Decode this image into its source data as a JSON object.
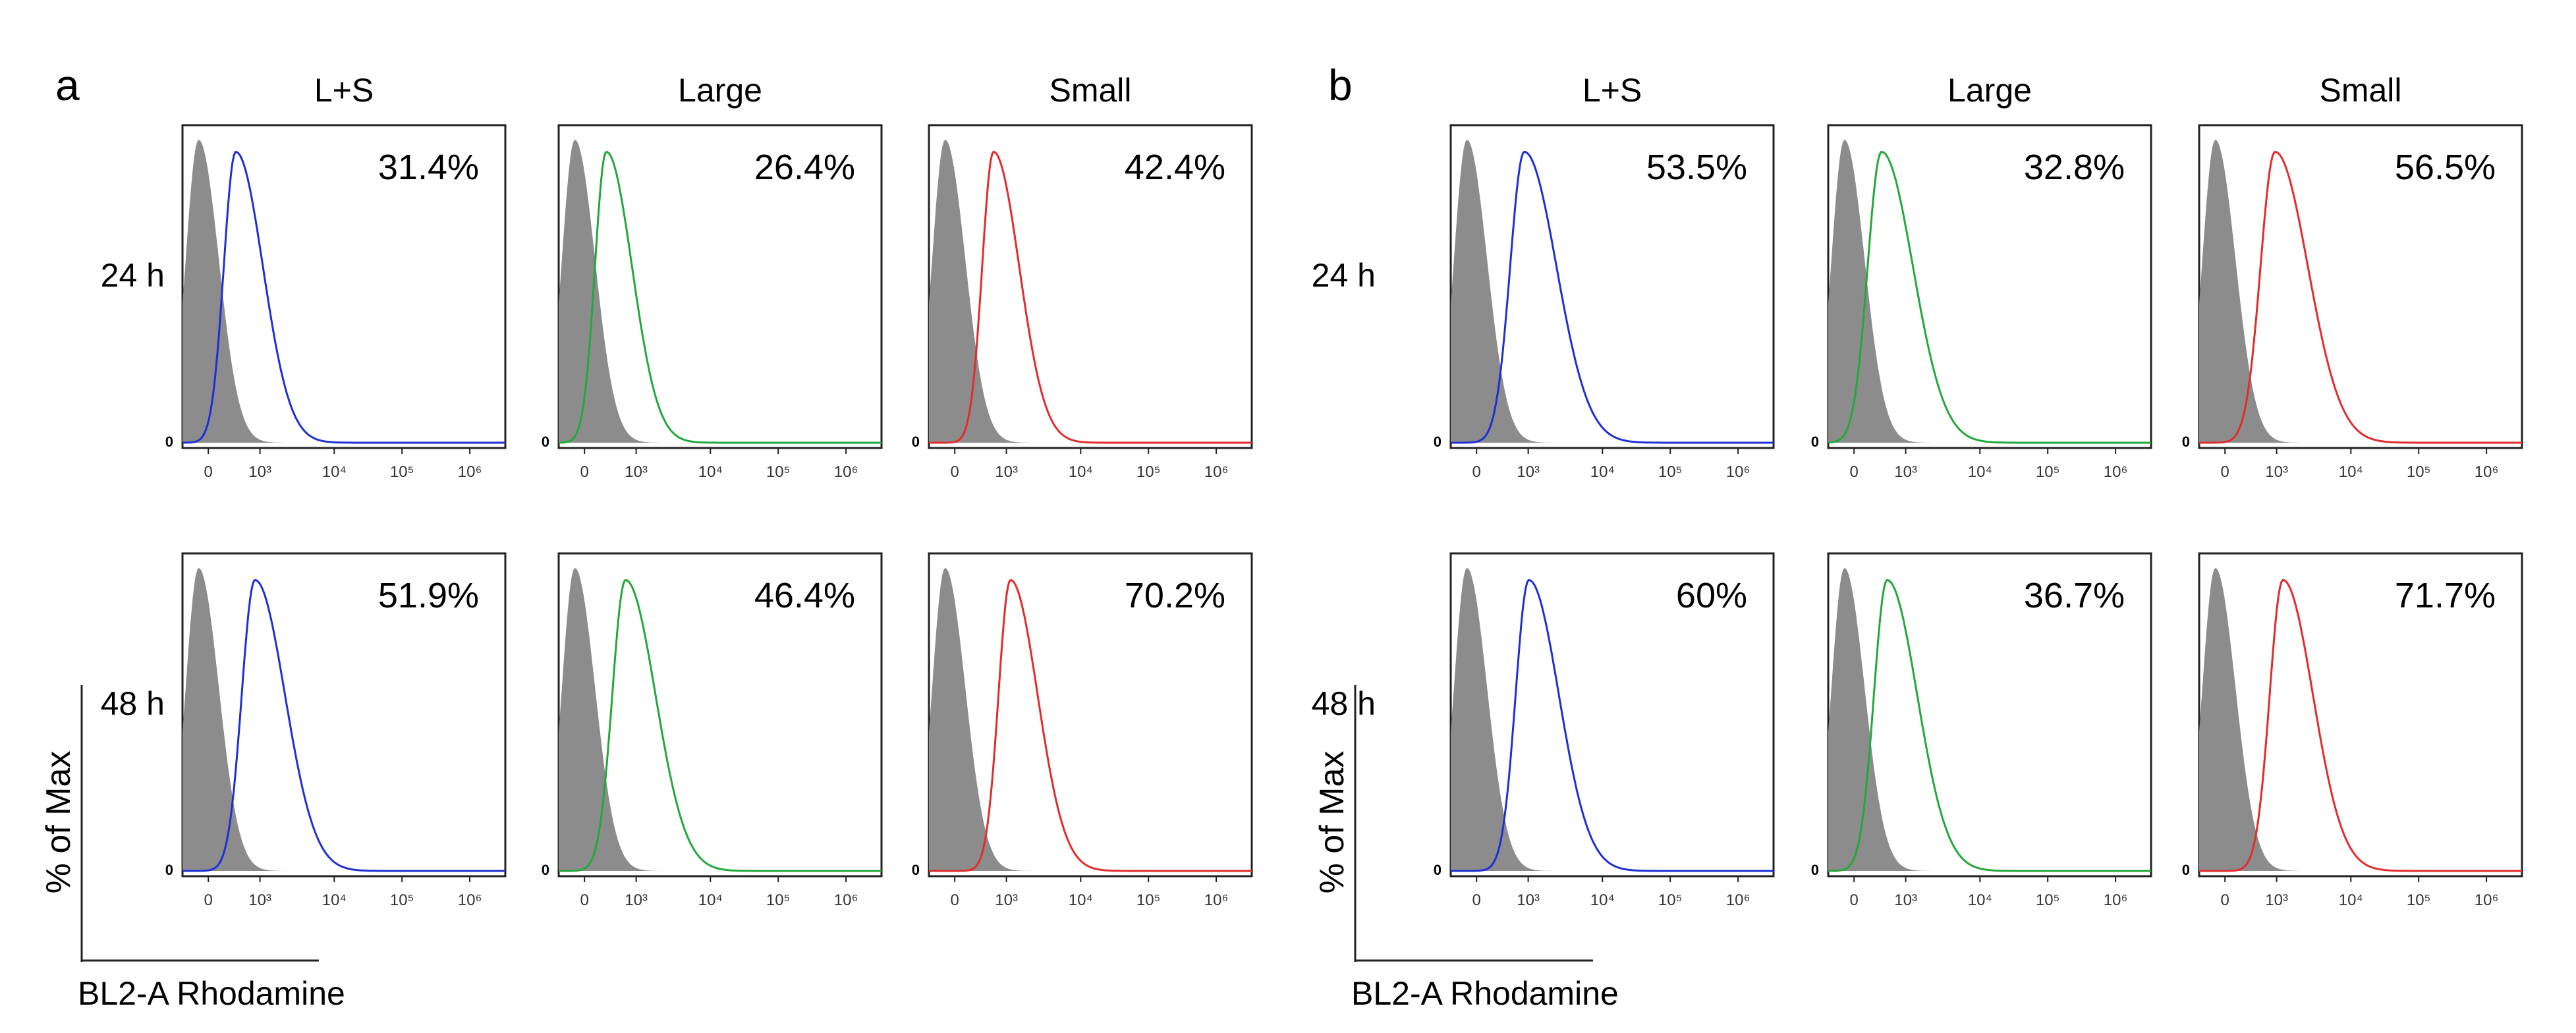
{
  "figure": {
    "xaxis_label": "BL2-A Rhodamine",
    "yaxis_label": "% of Max",
    "zero_label": "0",
    "control_color": "#8c8c8c",
    "series_colors": {
      "L+S": "#1f2fd6",
      "Large": "#22a83a",
      "Small": "#e32b2b"
    },
    "ticks_top": [
      "0",
      "10³",
      "10⁴",
      "10⁵",
      "10⁶"
    ],
    "ticks_bottom": [
      "0",
      "10³",
      "10⁴",
      "10⁵",
      "10⁶"
    ]
  },
  "chart_data": [
    {
      "type": "area",
      "panel": "a",
      "title": "L+S",
      "row": "24 h",
      "percent": "31.4%",
      "color": "#1f2fd6",
      "control_peak": 0.05,
      "sample_peak": 0.3,
      "sample_width": 0.38
    },
    {
      "type": "area",
      "panel": "a",
      "title": "Large",
      "row": "24 h",
      "percent": "26.4%",
      "color": "#22a83a",
      "control_peak": 0.05,
      "sample_peak": 0.25,
      "sample_width": 0.36
    },
    {
      "type": "area",
      "panel": "a",
      "title": "Small",
      "row": "24 h",
      "percent": "42.4%",
      "color": "#e32b2b",
      "control_peak": 0.05,
      "sample_peak": 0.4,
      "sample_width": 0.36
    },
    {
      "type": "area",
      "panel": "a",
      "title": "L+S",
      "row": "48 h",
      "percent": "51.9%",
      "color": "#1f2fd6",
      "control_peak": 0.05,
      "sample_peak": 0.47,
      "sample_width": 0.42
    },
    {
      "type": "area",
      "panel": "a",
      "title": "Large",
      "row": "48 h",
      "percent": "46.4%",
      "color": "#22a83a",
      "control_peak": 0.05,
      "sample_peak": 0.42,
      "sample_width": 0.42
    },
    {
      "type": "area",
      "panel": "a",
      "title": "Small",
      "row": "48 h",
      "percent": "70.2%",
      "color": "#e32b2b",
      "control_peak": 0.05,
      "sample_peak": 0.55,
      "sample_width": 0.38
    },
    {
      "type": "area",
      "panel": "b",
      "title": "L+S",
      "row": "24 h",
      "percent": "53.5%",
      "color": "#1f2fd6",
      "control_peak": 0.05,
      "sample_peak": 0.48,
      "sample_width": 0.45
    },
    {
      "type": "area",
      "panel": "b",
      "title": "Large",
      "row": "24 h",
      "percent": "32.8%",
      "color": "#22a83a",
      "control_peak": 0.05,
      "sample_peak": 0.3,
      "sample_width": 0.44
    },
    {
      "type": "area",
      "panel": "b",
      "title": "Small",
      "row": "24 h",
      "percent": "56.5%",
      "color": "#e32b2b",
      "control_peak": 0.05,
      "sample_peak": 0.5,
      "sample_width": 0.46
    },
    {
      "type": "area",
      "panel": "b",
      "title": "L+S",
      "row": "48 h",
      "percent": "60%",
      "color": "#1f2fd6",
      "control_peak": 0.05,
      "sample_peak": 0.52,
      "sample_width": 0.42
    },
    {
      "type": "area",
      "panel": "b",
      "title": "Large",
      "row": "48 h",
      "percent": "36.7%",
      "color": "#22a83a",
      "control_peak": 0.05,
      "sample_peak": 0.35,
      "sample_width": 0.42
    },
    {
      "type": "area",
      "panel": "b",
      "title": "Small",
      "row": "48 h",
      "percent": "71.7%",
      "color": "#e32b2b",
      "control_peak": 0.05,
      "sample_peak": 0.57,
      "sample_width": 0.42
    }
  ],
  "panels": [
    {
      "letter": "a"
    },
    {
      "letter": "b"
    }
  ]
}
